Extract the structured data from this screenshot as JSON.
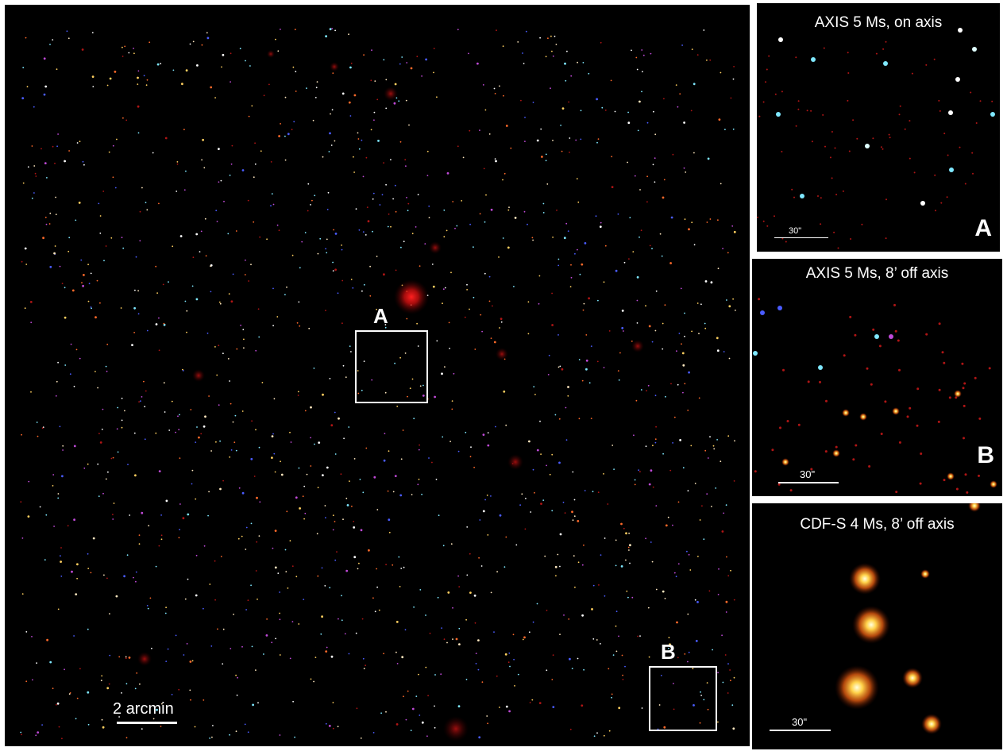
{
  "main_field": {
    "scale_label": "2 arcmin",
    "box_a_label": "A",
    "box_b_label": "B"
  },
  "insets": [
    {
      "title": "AXIS 5 Ms, on axis",
      "letter": "A",
      "scale_label": "30\""
    },
    {
      "title": "AXIS 5 Ms, 8’ off axis",
      "letter": "B",
      "scale_label": "30\""
    },
    {
      "title": "CDF-S 4 Ms, 8’ off axis",
      "letter": "",
      "scale_label": "30\""
    }
  ],
  "colors": {
    "background": "#000000",
    "annotation": "#ffffff",
    "diffuse_source": "#d01010",
    "point_palette": [
      "#ffffff",
      "#ffe8c0",
      "#ff6a2a",
      "#b01515",
      "#7fe8ff",
      "#4a5cff",
      "#c04ad8",
      "#ffd060"
    ]
  }
}
